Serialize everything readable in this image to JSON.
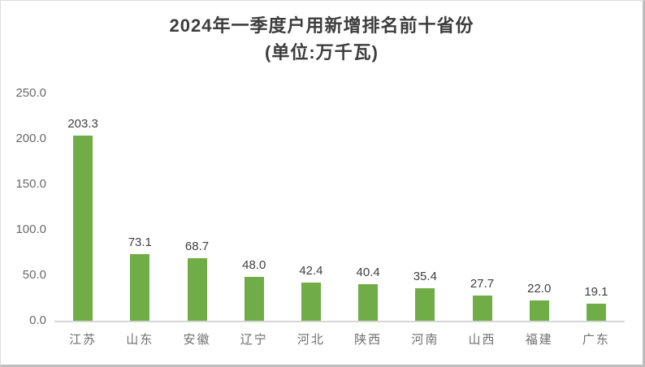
{
  "title": {
    "line1": "2024年一季度户用新增排名前十省份",
    "line2": "(单位:万千瓦)"
  },
  "chart_data": {
    "type": "bar",
    "title": "2024年一季度户用新增排名前十省份",
    "subtitle": "(单位:万千瓦)",
    "unit": "万千瓦",
    "categories": [
      "江苏",
      "山东",
      "安徽",
      "辽宁",
      "河北",
      "陕西",
      "河南",
      "山西",
      "福建",
      "广东"
    ],
    "values": [
      203.3,
      73.1,
      68.7,
      48.0,
      42.4,
      40.4,
      35.4,
      27.7,
      22.0,
      19.1
    ],
    "value_labels": [
      "203.3",
      "73.1",
      "68.7",
      "48.0",
      "42.4",
      "40.4",
      "35.4",
      "27.7",
      "22.0",
      "19.1"
    ],
    "xlabel": "",
    "ylabel": "",
    "ylim": [
      0,
      250
    ],
    "yticks": [
      250,
      200,
      150,
      100,
      50,
      0
    ],
    "ytick_labels": [
      "250.0",
      "200.0",
      "150.0",
      "100.0",
      "50.0",
      "0.0"
    ],
    "grid": false,
    "legend": false,
    "bar_color": "#70AD47",
    "axis_line_color": "#D6D6D6"
  },
  "colors": {
    "bar": "#70AD47",
    "title_text": "#3D3D3D",
    "value_label_text": "#404040",
    "axis_label_text": "#696969",
    "axis_line": "#D6D6D6",
    "background": "#FFFFFF",
    "frame_border": "#BDBDBD"
  }
}
